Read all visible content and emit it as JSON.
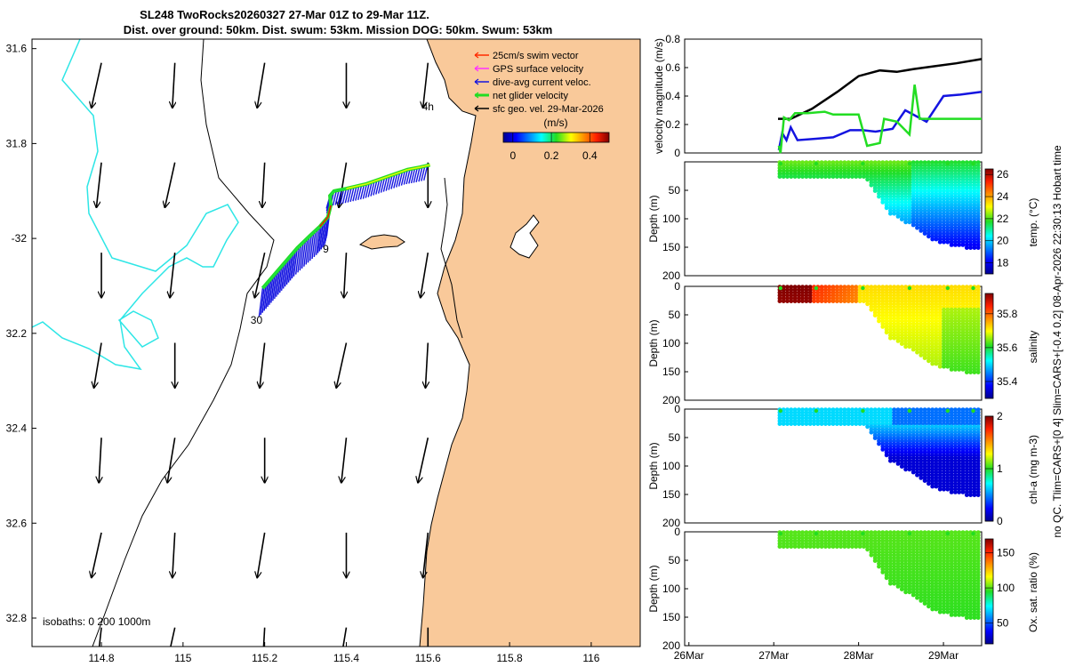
{
  "title": {
    "line1": "SL248 TwoRocks20260327 27-Mar 01Z to 29-Mar 11Z.",
    "line2": "Dist. over ground: 50km. Dist. swum: 53km. Mission DOG: 50km. Swum: 53km"
  },
  "colors": {
    "land": "#f9c99a",
    "isobath": "#2ee6e6",
    "glider_track": "#1414e0",
    "net_velocity": "#22dd22",
    "surface_geo": "#000000"
  },
  "chart_data": [
    {
      "id": "map",
      "type": "scatter",
      "description_kind": "map",
      "xlim": [
        114.63,
        116.12
      ],
      "ylim": [
        -32.86,
        -31.58
      ],
      "x_ticks": [
        114.8,
        115,
        115.2,
        115.4,
        115.6,
        115.8,
        116
      ],
      "x_tick_labels": [
        "114.8",
        "115",
        "115.2",
        "115.4",
        "115.6",
        "115.8",
        "116"
      ],
      "y_ticks": [
        -31.6,
        -31.8,
        -32,
        -32.2,
        -32.4,
        -32.6,
        -32.8
      ],
      "y_tick_labels": [
        "31.6",
        "31.8",
        "-32",
        "32.2",
        "32.4",
        "32.6",
        "32.8"
      ],
      "isobath_label": "isobaths: 0   200  1000m",
      "legend": [
        {
          "label": "25cm/s swim vector",
          "color": "#ff2a00"
        },
        {
          "label": "GPS surface velocity",
          "color": "#ff33ff"
        },
        {
          "label": "dive-avg current veloc.",
          "color": "#1414e0"
        },
        {
          "label": "net glider velocity",
          "color": "#22dd22"
        },
        {
          "label": "sfc geo. vel. 29-Mar-2026",
          "color": "#000000"
        }
      ],
      "colorbar": {
        "label": "(m/s)",
        "ticks": [
          0,
          0.2,
          0.4
        ],
        "tick_labels": [
          "0",
          "0.2",
          "0.4"
        ],
        "range": [
          -0.05,
          0.5
        ]
      },
      "track_annotations": [
        {
          "text": "4h",
          "lon": 115.6,
          "lat": -31.73
        },
        {
          "text": "9",
          "lon": 115.35,
          "lat": -32.03
        },
        {
          "text": "30",
          "lon": 115.18,
          "lat": -32.18
        }
      ],
      "glider_track": {
        "lon": [
          115.195,
          115.22,
          115.25,
          115.28,
          115.31,
          115.335,
          115.355,
          115.362,
          115.36,
          115.37,
          115.4,
          115.45,
          115.5,
          115.55,
          115.58,
          115.605
        ],
        "lat": [
          -32.105,
          -32.08,
          -32.05,
          -32.02,
          -31.995,
          -31.975,
          -31.955,
          -31.93,
          -31.91,
          -31.9,
          -31.895,
          -31.885,
          -31.87,
          -31.855,
          -31.85,
          -31.845
        ]
      },
      "geo_velocity_vectors": {
        "lon": [
          114.8,
          114.98,
          115.2,
          115.4,
          115.6
        ],
        "lat": [
          -31.63,
          -31.84,
          -32.03,
          -32.22,
          -32.42,
          -32.62,
          -32.82
        ],
        "u_ms": -0.02,
        "v_ms": -0.18
      }
    },
    {
      "id": "velocity",
      "type": "line",
      "ylabel": "velocity magnitude (m/s)",
      "xlim": [
        -1.05,
        2.45
      ],
      "ylim": [
        0,
        0.8
      ],
      "y_ticks": [
        0,
        0.2,
        0.4,
        0.6,
        0.8
      ],
      "y_tick_labels": [
        "0",
        "0.2",
        "0.4",
        "0.6",
        "0.8"
      ],
      "series": [
        {
          "name": "surface geostrophic",
          "color": "#000000",
          "x": [
            0.05,
            0.2,
            0.45,
            0.75,
            1.0,
            1.25,
            1.45,
            1.65,
            1.9,
            2.15,
            2.45
          ],
          "y": [
            0.24,
            0.24,
            0.31,
            0.43,
            0.54,
            0.58,
            0.57,
            0.59,
            0.61,
            0.63,
            0.66
          ]
        },
        {
          "name": "dive-avg current",
          "color": "#1414e0",
          "x": [
            0.06,
            0.1,
            0.15,
            0.2,
            0.28,
            0.5,
            0.7,
            0.9,
            1.05,
            1.2,
            1.4,
            1.55,
            1.8,
            2.0,
            2.2,
            2.45
          ],
          "y": [
            0.02,
            0.14,
            0.09,
            0.18,
            0.09,
            0.1,
            0.11,
            0.16,
            0.16,
            0.15,
            0.17,
            0.3,
            0.22,
            0.4,
            0.41,
            0.43
          ]
        },
        {
          "name": "net glider velocity",
          "color": "#22dd22",
          "x": [
            0.06,
            0.08,
            0.12,
            0.18,
            0.25,
            0.4,
            0.6,
            0.7,
            0.85,
            1.0,
            1.1,
            1.25,
            1.3,
            1.45,
            1.6,
            1.66,
            1.72,
            1.82,
            2.45
          ],
          "y": [
            0.05,
            0.0,
            0.25,
            0.23,
            0.28,
            0.28,
            0.29,
            0.27,
            0.27,
            0.27,
            0.05,
            0.07,
            0.24,
            0.22,
            0.13,
            0.48,
            0.24,
            0.24,
            0.24
          ]
        }
      ]
    },
    {
      "id": "temperature",
      "type": "heatmap",
      "ylabel": "Depth (m)",
      "cbar_label": "temp. (°C)",
      "ylim": [
        0,
        200
      ],
      "y_ticks": [
        0,
        50,
        100,
        150,
        200
      ],
      "y_tick_labels": [
        "",
        "50",
        "100",
        "150",
        "200"
      ],
      "clim": [
        17,
        26.5
      ],
      "cbar_ticks": [
        18,
        20,
        22,
        24,
        26
      ],
      "cbar_tick_labels": [
        "18",
        "20",
        "22",
        "24",
        "26"
      ],
      "profile_time_days": [
        0.07,
        2.45
      ],
      "max_depth_by_time": [
        [
          0,
          30
        ],
        [
          1.1,
          30
        ],
        [
          1.35,
          90
        ],
        [
          1.6,
          110
        ],
        [
          1.9,
          140
        ],
        [
          2.2,
          150
        ],
        [
          2.45,
          155
        ]
      ],
      "value_surface": 22.2,
      "value_deep": 19.5
    },
    {
      "id": "salinity",
      "type": "heatmap",
      "ylabel": "Depth (m)",
      "cbar_label": "salinity",
      "ylim": [
        0,
        200
      ],
      "y_ticks": [
        0,
        50,
        100,
        150,
        200
      ],
      "y_tick_labels": [
        "0",
        "50",
        "100",
        "150",
        "200"
      ],
      "clim": [
        35.3,
        35.92
      ],
      "cbar_ticks": [
        35.4,
        35.6,
        35.8
      ],
      "cbar_tick_labels": [
        "35.4",
        "35.6",
        "35.8"
      ],
      "profile_time_days": [
        0.07,
        2.45
      ],
      "max_depth_by_time": [
        [
          0,
          30
        ],
        [
          1.1,
          30
        ],
        [
          1.35,
          90
        ],
        [
          1.6,
          110
        ],
        [
          1.9,
          140
        ],
        [
          2.2,
          150
        ],
        [
          2.45,
          155
        ]
      ],
      "value_early": 35.92,
      "value_late": 35.72
    },
    {
      "id": "chla",
      "type": "heatmap",
      "ylabel": "Depth (m)",
      "cbar_label": "chl-a (mg m-3)",
      "ylim": [
        0,
        200
      ],
      "y_ticks": [
        0,
        50,
        100,
        150,
        200
      ],
      "y_tick_labels": [
        "0",
        "50",
        "100",
        "150",
        "200"
      ],
      "clim": [
        0,
        2
      ],
      "cbar_ticks": [
        0,
        1,
        2
      ],
      "cbar_tick_labels": [
        "0",
        "1",
        "2"
      ],
      "profile_time_days": [
        0.07,
        2.45
      ],
      "max_depth_by_time": [
        [
          0,
          30
        ],
        [
          1.1,
          30
        ],
        [
          1.35,
          90
        ],
        [
          1.6,
          110
        ],
        [
          1.9,
          140
        ],
        [
          2.2,
          150
        ],
        [
          2.45,
          155
        ]
      ],
      "value_surface": 0.65,
      "value_deep": 0.15
    },
    {
      "id": "oxygen",
      "type": "heatmap",
      "ylabel": "Depth (m)",
      "cbar_label": "Ox. sat. ratio (%)",
      "ylim": [
        0,
        200
      ],
      "y_ticks": [
        0,
        50,
        100,
        150,
        200
      ],
      "y_tick_labels": [
        "0",
        "50",
        "100",
        "150",
        "200"
      ],
      "clim": [
        20,
        170
      ],
      "cbar_ticks": [
        50,
        100,
        150
      ],
      "cbar_tick_labels": [
        "50",
        "100",
        "150"
      ],
      "profile_time_days": [
        0.07,
        2.45
      ],
      "max_depth_by_time": [
        [
          0,
          30
        ],
        [
          1.1,
          30
        ],
        [
          1.35,
          90
        ],
        [
          1.6,
          110
        ],
        [
          1.9,
          140
        ],
        [
          2.2,
          150
        ],
        [
          2.45,
          155
        ]
      ],
      "value_surface": 100,
      "value_deep": 96,
      "x_ticks": [
        -1,
        0,
        1,
        2
      ],
      "x_tick_labels": [
        "26Mar",
        "27Mar",
        "28Mar",
        "29Mar"
      ]
    }
  ],
  "side_note": "no QC. Tlim=CARS+[0 4] Slim=CARS+[-0.4 0.2] 08-Apr-2026 22:30:13 Hobart time"
}
